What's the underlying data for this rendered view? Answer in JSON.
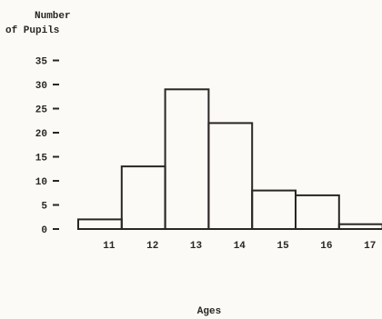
{
  "chart_data": {
    "type": "bar",
    "title": "",
    "ylabel_lines": [
      "Number",
      "of Pupils"
    ],
    "xlabel": "Ages",
    "categories": [
      "11",
      "12",
      "13",
      "14",
      "15",
      "16",
      "17"
    ],
    "bins_left_edge": 10.5,
    "values": [
      2,
      13,
      29,
      22,
      8,
      7,
      1
    ],
    "yticks": [
      "0",
      "5",
      "10",
      "15",
      "20",
      "25",
      "30",
      "35"
    ],
    "ylim": [
      0,
      35
    ],
    "grid": false,
    "colors": {
      "ink": "#2a2622",
      "background": "#fbfaf6"
    }
  }
}
